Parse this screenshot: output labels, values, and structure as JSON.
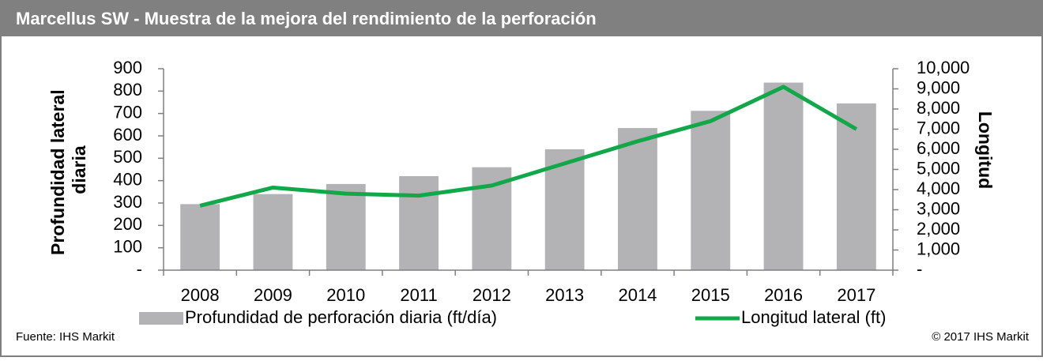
{
  "chart_data": {
    "type": "bar_line",
    "title": "Marcellus SW - Muestra de la mejora del rendimiento de la perforación",
    "y_label": [
      "Profundidad lateral",
      "diaria"
    ],
    "y2_label": "Longitud",
    "categories": [
      "2008",
      "2009",
      "2010",
      "2011",
      "2012",
      "2013",
      "2014",
      "2015",
      "2016",
      "2017"
    ],
    "series": [
      {
        "name": "Profundidad de perforación diaria (ft/día)",
        "kind": "bar",
        "color": "#b3b3b5",
        "values": [
          295,
          340,
          385,
          420,
          460,
          540,
          635,
          712,
          838,
          745
        ]
      },
      {
        "name": "Longitud lateral (ft)",
        "kind": "line",
        "color": "#12a84a",
        "axis": "y2",
        "values": [
          3200,
          4100,
          3800,
          3700,
          4200,
          5300,
          6400,
          7400,
          9100,
          7000
        ]
      }
    ],
    "ylim": [
      0,
      900
    ],
    "yticks": [
      {
        "value": 0,
        "label": "-"
      },
      100,
      200,
      300,
      400,
      500,
      600,
      700,
      800,
      900
    ],
    "y2lim": [
      0,
      10000
    ],
    "y2ticks": [
      {
        "value": 0,
        "label": "-"
      },
      {
        "value": 1000,
        "label": "1,000"
      },
      {
        "value": 2000,
        "label": "2,000"
      },
      {
        "value": 3000,
        "label": "3,000"
      },
      {
        "value": 4000,
        "label": "4,000"
      },
      {
        "value": 5000,
        "label": "5,000"
      },
      {
        "value": 6000,
        "label": "6,000"
      },
      {
        "value": 7000,
        "label": "7,000"
      },
      {
        "value": 8000,
        "label": "8,000"
      },
      {
        "value": 9000,
        "label": "9,000"
      },
      {
        "value": 10000,
        "label": "10,000"
      }
    ],
    "source": "Fuente: IHS Markit",
    "copyright": "© 2017 IHS Markit"
  }
}
